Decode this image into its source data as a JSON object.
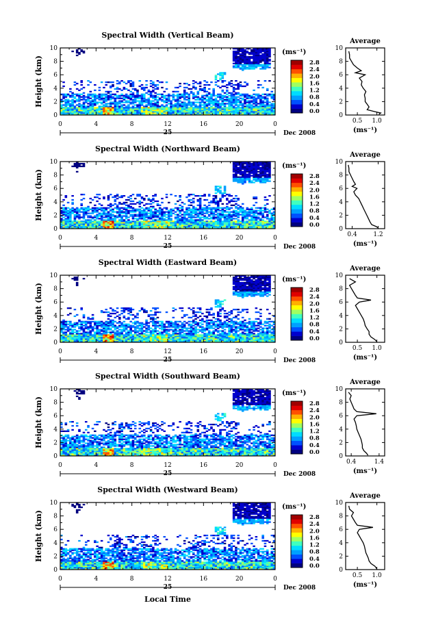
{
  "chart_data": {
    "type": "heatmap",
    "x_axis": {
      "ticks": [
        "0",
        "4",
        "8",
        "12",
        "16",
        "20",
        "0"
      ],
      "range": [
        0,
        24
      ],
      "day_label": "25",
      "month_label": "Dec 2008",
      "xlabel": "Local Time"
    },
    "y_axis": {
      "ylabel": "Height (km)",
      "ticks": [
        "0",
        "2",
        "4",
        "6",
        "8",
        "10"
      ],
      "range": [
        0,
        10
      ]
    },
    "colorbar": {
      "unit_label": "(ms⁻¹)",
      "ticks": [
        "0.0",
        "0.4",
        "0.8",
        "1.2",
        "1.6",
        "2.0",
        "2.4",
        "2.8"
      ],
      "range": [
        0.0,
        3.0
      ],
      "colors": [
        "#000080",
        "#0000cd",
        "#0050ff",
        "#00a0ff",
        "#00dcff",
        "#40ffc0",
        "#a0ff60",
        "#ffff00",
        "#ffb000",
        "#ff5000",
        "#e00000",
        "#a00000"
      ]
    },
    "panels": [
      {
        "title": "Spectral Width (Vertical Beam)",
        "avg_title": "Average",
        "avg_xticks": [
          "0.5",
          "1.0"
        ],
        "avg_xrange": [
          0.2,
          1.2
        ],
        "avg_xlabel": "(ms⁻¹)",
        "avg_profile": [
          [
            1.05,
            0.1
          ],
          [
            1.1,
            0.3
          ],
          [
            0.95,
            0.5
          ],
          [
            0.75,
            0.8
          ],
          [
            0.8,
            1.2
          ],
          [
            0.75,
            1.6
          ],
          [
            0.7,
            2.0
          ],
          [
            0.7,
            2.5
          ],
          [
            0.68,
            3.0
          ],
          [
            0.72,
            3.5
          ],
          [
            0.65,
            4.0
          ],
          [
            0.6,
            4.5
          ],
          [
            0.62,
            5.0
          ],
          [
            0.55,
            5.5
          ],
          [
            0.7,
            6.0
          ],
          [
            0.45,
            6.3
          ],
          [
            0.6,
            6.6
          ],
          [
            0.5,
            7.0
          ],
          [
            0.4,
            7.5
          ],
          [
            0.35,
            8.0
          ],
          [
            0.3,
            8.5
          ],
          [
            0.3,
            9.0
          ],
          [
            0.28,
            9.5
          ]
        ]
      },
      {
        "title": "Spectral Width (Northward Beam)",
        "avg_title": "Average",
        "avg_xticks": [
          "0.4",
          "1.2"
        ],
        "avg_xrange": [
          0.2,
          1.4
        ],
        "avg_xlabel": "(ms⁻¹)",
        "avg_profile": [
          [
            1.2,
            0.1
          ],
          [
            1.15,
            0.3
          ],
          [
            1.0,
            0.6
          ],
          [
            0.95,
            1.0
          ],
          [
            0.9,
            1.5
          ],
          [
            0.85,
            2.0
          ],
          [
            0.8,
            2.5
          ],
          [
            0.75,
            3.0
          ],
          [
            0.7,
            3.5
          ],
          [
            0.65,
            4.0
          ],
          [
            0.6,
            4.5
          ],
          [
            0.5,
            5.0
          ],
          [
            0.45,
            5.5
          ],
          [
            0.55,
            6.0
          ],
          [
            0.4,
            6.3
          ],
          [
            0.5,
            6.6
          ],
          [
            0.45,
            7.0
          ],
          [
            0.4,
            7.5
          ],
          [
            0.35,
            8.0
          ],
          [
            0.3,
            8.5
          ],
          [
            0.3,
            9.0
          ],
          [
            0.28,
            9.5
          ]
        ]
      },
      {
        "title": "Spectral Width (Eastward Beam)",
        "avg_title": "Average",
        "avg_xticks": [
          "0.5",
          "1.0"
        ],
        "avg_xrange": [
          0.2,
          1.2
        ],
        "avg_xlabel": "(ms⁻¹)",
        "avg_profile": [
          [
            1.0,
            0.1
          ],
          [
            0.95,
            0.4
          ],
          [
            0.85,
            0.8
          ],
          [
            0.8,
            1.2
          ],
          [
            0.8,
            1.6
          ],
          [
            0.75,
            2.0
          ],
          [
            0.7,
            2.5
          ],
          [
            0.68,
            3.0
          ],
          [
            0.65,
            3.5
          ],
          [
            0.6,
            4.0
          ],
          [
            0.55,
            4.5
          ],
          [
            0.5,
            5.0
          ],
          [
            0.45,
            5.5
          ],
          [
            0.55,
            6.0
          ],
          [
            0.85,
            6.3
          ],
          [
            0.5,
            6.6
          ],
          [
            0.45,
            7.0
          ],
          [
            0.4,
            7.5
          ],
          [
            0.35,
            8.0
          ],
          [
            0.3,
            8.5
          ],
          [
            0.45,
            9.0
          ],
          [
            0.3,
            9.5
          ]
        ]
      },
      {
        "title": "Spectral Width (Southward Beam)",
        "avg_title": "Average",
        "avg_xticks": [
          "0.4",
          "1.4"
        ],
        "avg_xrange": [
          0.2,
          1.6
        ],
        "avg_xlabel": "(ms⁻¹)",
        "avg_profile": [
          [
            1.0,
            0.1
          ],
          [
            0.95,
            0.4
          ],
          [
            0.85,
            0.8
          ],
          [
            0.8,
            1.2
          ],
          [
            0.8,
            1.6
          ],
          [
            0.78,
            2.0
          ],
          [
            0.75,
            2.5
          ],
          [
            0.7,
            3.0
          ],
          [
            0.65,
            3.5
          ],
          [
            0.6,
            4.0
          ],
          [
            0.58,
            4.5
          ],
          [
            0.55,
            5.0
          ],
          [
            0.5,
            5.5
          ],
          [
            0.6,
            6.0
          ],
          [
            1.3,
            6.3
          ],
          [
            0.6,
            6.6
          ],
          [
            0.5,
            7.0
          ],
          [
            0.45,
            7.5
          ],
          [
            0.4,
            8.0
          ],
          [
            0.35,
            8.5
          ],
          [
            0.4,
            9.0
          ],
          [
            0.3,
            9.5
          ]
        ]
      },
      {
        "title": "Spectral Width (Westward Beam)",
        "avg_title": "Average",
        "avg_xticks": [
          "0.5",
          "1.0"
        ],
        "avg_xrange": [
          0.2,
          1.2
        ],
        "avg_xlabel": "(ms⁻¹)",
        "avg_profile": [
          [
            1.0,
            0.1
          ],
          [
            0.95,
            0.5
          ],
          [
            0.85,
            0.9
          ],
          [
            0.8,
            1.3
          ],
          [
            0.78,
            1.7
          ],
          [
            0.75,
            2.1
          ],
          [
            0.72,
            2.5
          ],
          [
            0.7,
            3.0
          ],
          [
            0.68,
            3.5
          ],
          [
            0.65,
            4.0
          ],
          [
            0.6,
            4.5
          ],
          [
            0.55,
            5.0
          ],
          [
            0.5,
            5.5
          ],
          [
            0.55,
            6.0
          ],
          [
            0.9,
            6.3
          ],
          [
            0.5,
            6.6
          ],
          [
            0.45,
            7.0
          ],
          [
            0.4,
            7.5
          ],
          [
            0.35,
            8.0
          ],
          [
            0.4,
            8.5
          ],
          [
            0.3,
            9.0
          ],
          [
            0.28,
            9.5
          ]
        ]
      }
    ]
  }
}
